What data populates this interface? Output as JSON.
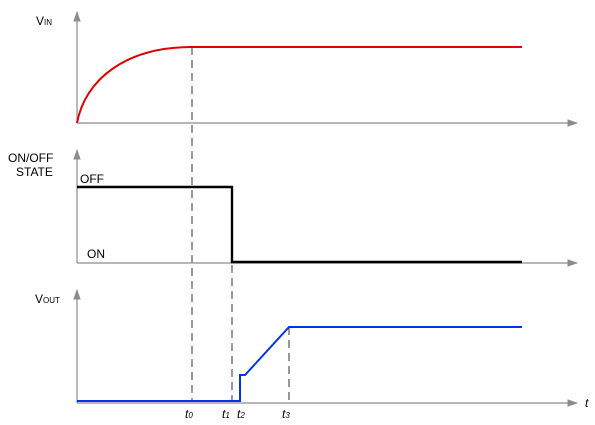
{
  "panels": {
    "vin": {
      "label_main": "V",
      "label_sub": "IN"
    },
    "state": {
      "label_line1": "ON/OFF",
      "label_line2": "STATE",
      "off_label": "OFF",
      "on_label": "ON"
    },
    "vout": {
      "label_main": "V",
      "label_sub": "OUT"
    }
  },
  "time_axis": {
    "label": "t",
    "markers": [
      {
        "main": "t",
        "sub": "0"
      },
      {
        "main": "t",
        "sub": "1"
      },
      {
        "main": "t",
        "sub": "2"
      },
      {
        "main": "t",
        "sub": "3"
      }
    ]
  },
  "colors": {
    "vin_curve": "#e00000",
    "state_trace": "#000000",
    "vout_trace": "#0033ee",
    "axis": "#8c8c8c",
    "dashed": "#000000"
  }
}
